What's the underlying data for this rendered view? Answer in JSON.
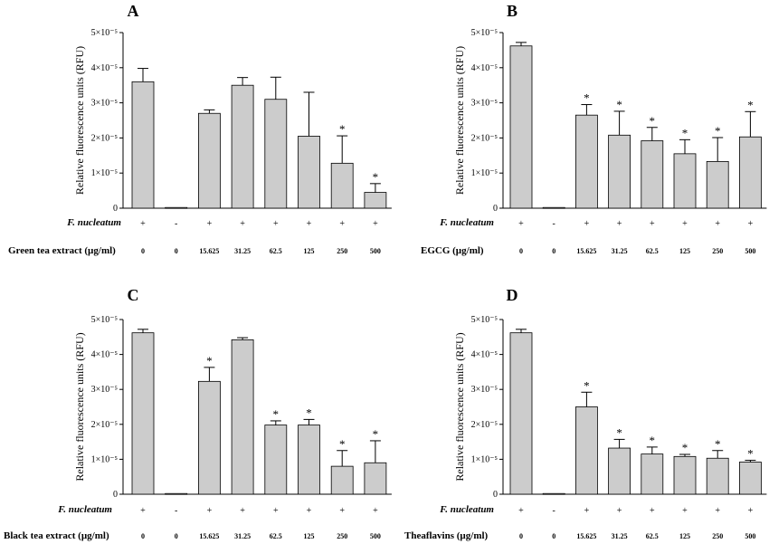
{
  "chart_data": [
    {
      "type": "bar",
      "panel": "A",
      "ylabel": "Relative fluorescence units  (RFU)",
      "ylim": [
        0,
        5
      ],
      "y_tick_labels": [
        "0",
        "1×10⁻⁵",
        "2×10⁻⁵",
        "3×10⁻⁵",
        "4×10⁻⁵",
        "5×10⁻⁵"
      ],
      "row1_label": "F. nucleatum",
      "row2_label": "Green tea extract (µg/ml)",
      "categories": [
        "0",
        "0",
        "15.625",
        "31.25",
        "62.5",
        "125",
        "250",
        "500"
      ],
      "fn_present": [
        "+",
        "-",
        "+",
        "+",
        "+",
        "+",
        "+",
        "+"
      ],
      "values": [
        3.6,
        0.02,
        2.7,
        3.5,
        3.1,
        2.05,
        1.28,
        0.45
      ],
      "errors": [
        0.38,
        0,
        0.1,
        0.22,
        0.63,
        1.25,
        0.78,
        0.25
      ],
      "significant": [
        false,
        false,
        false,
        false,
        false,
        false,
        true,
        true
      ],
      "significance_mark": "*"
    },
    {
      "type": "bar",
      "panel": "B",
      "ylabel": "Relative fluorescence units  (RFU)",
      "ylim": [
        0,
        5
      ],
      "y_tick_labels": [
        "0",
        "1×10⁻⁵",
        "2×10⁻⁵",
        "3×10⁻⁵",
        "4×10⁻⁵",
        "5×10⁻⁵"
      ],
      "row1_label": "F. nucleatum",
      "row2_label": "EGCG (µg/ml)",
      "categories": [
        "0",
        "0",
        "15.625",
        "31.25",
        "62.5",
        "125",
        "250",
        "500"
      ],
      "fn_present": [
        "+",
        "-",
        "+",
        "+",
        "+",
        "+",
        "+",
        "+"
      ],
      "values": [
        4.62,
        0.02,
        2.65,
        2.08,
        1.92,
        1.55,
        1.33,
        2.03
      ],
      "errors": [
        0.1,
        0,
        0.3,
        0.68,
        0.38,
        0.4,
        0.68,
        0.72
      ],
      "significant": [
        false,
        false,
        true,
        true,
        true,
        true,
        true,
        true
      ],
      "significance_mark": "*"
    },
    {
      "type": "bar",
      "panel": "C",
      "ylabel": "Relative fluorescence units  (RFU)",
      "ylim": [
        0,
        5
      ],
      "y_tick_labels": [
        "0",
        "1×10⁻⁵",
        "2×10⁻⁵",
        "3×10⁻⁵",
        "4×10⁻⁵",
        "5×10⁻⁵"
      ],
      "row1_label": "F. nucleatum",
      "row2_label": "Black tea extract (µg/ml)",
      "categories": [
        "0",
        "0",
        "15.625",
        "31.25",
        "62.5",
        "125",
        "250",
        "500"
      ],
      "fn_present": [
        "+",
        "-",
        "+",
        "+",
        "+",
        "+",
        "+",
        "+"
      ],
      "values": [
        4.62,
        0.02,
        3.23,
        4.42,
        1.98,
        1.98,
        0.8,
        0.9
      ],
      "errors": [
        0.1,
        0,
        0.4,
        0.06,
        0.12,
        0.16,
        0.45,
        0.63
      ],
      "significant": [
        false,
        false,
        true,
        false,
        true,
        true,
        true,
        true
      ],
      "significance_mark": "*"
    },
    {
      "type": "bar",
      "panel": "D",
      "ylabel": "Relative fluorescence units  (RFU)",
      "ylim": [
        0,
        5
      ],
      "y_tick_labels": [
        "0",
        "1×10⁻⁵",
        "2×10⁻⁵",
        "3×10⁻⁵",
        "4×10⁻⁵",
        "5×10⁻⁵"
      ],
      "row1_label": "F. nucleatum",
      "row2_label": "Theaflavins (µg/ml)",
      "categories": [
        "0",
        "0",
        "15.625",
        "31.25",
        "62.5",
        "125",
        "250",
        "500"
      ],
      "fn_present": [
        "+",
        "-",
        "+",
        "+",
        "+",
        "+",
        "+",
        "+"
      ],
      "values": [
        4.62,
        0.02,
        2.5,
        1.32,
        1.15,
        1.08,
        1.03,
        0.92
      ],
      "errors": [
        0.1,
        0,
        0.42,
        0.25,
        0.2,
        0.06,
        0.22,
        0.05
      ],
      "significant": [
        false,
        false,
        true,
        true,
        true,
        true,
        true,
        true
      ],
      "significance_mark": "*"
    }
  ]
}
